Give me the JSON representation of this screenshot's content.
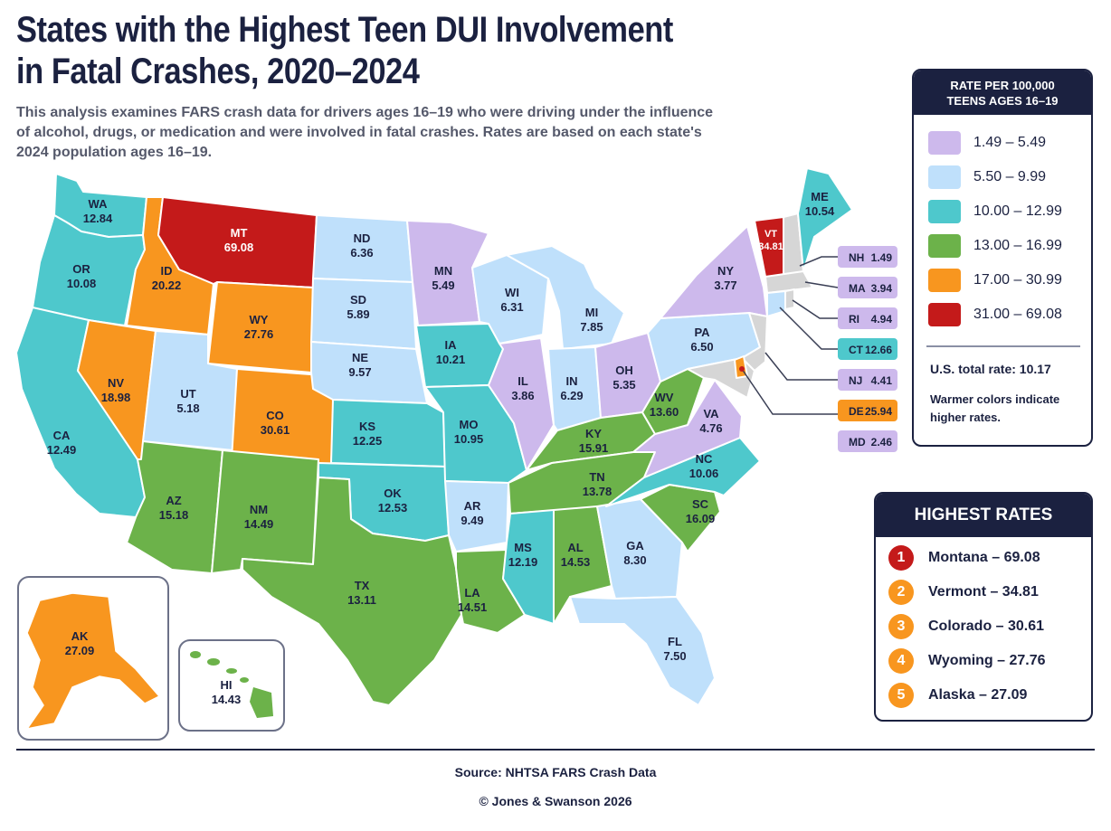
{
  "title_line1": "States with the Highest Teen DUI Involvement",
  "title_line2": "in Fatal Crashes, 2020–2024",
  "subtitle_line1": "This analysis examines FARS crash data for drivers ages 16–19 who were driving under the influence",
  "subtitle_line2": "of alcohol, drugs, or medication and were involved in fatal crashes. Rates are based on each state's",
  "subtitle_line3": "2024 population ages 16–19.",
  "legend": {
    "title_line1": "RATE PER 100,000",
    "title_line2": "TEENS AGES 16–19",
    "bins": [
      {
        "label": "1.49 – 5.49",
        "color": "#cdb9ec"
      },
      {
        "label": "5.50 – 9.99",
        "color": "#bfe0fb"
      },
      {
        "label": "10.00 – 12.99",
        "color": "#4ec8cc"
      },
      {
        "label": "13.00 – 16.99",
        "color": "#6cb24a"
      },
      {
        "label": "17.00 – 30.99",
        "color": "#f8961f"
      },
      {
        "label": "31.00 – 69.08",
        "color": "#c41a1a"
      }
    ],
    "total": "U.S. total rate: 10.17",
    "note": "Warmer colors indicate higher rates."
  },
  "highest": {
    "title": "HIGHEST RATES",
    "items": [
      {
        "rank": "1",
        "label": "Montana – 69.08",
        "color": "#c41a1a"
      },
      {
        "rank": "2",
        "label": "Vermont – 34.81",
        "color": "#f8961f"
      },
      {
        "rank": "3",
        "label": "Colorado – 30.61",
        "color": "#f8961f"
      },
      {
        "rank": "4",
        "label": "Wyoming – 27.76",
        "color": "#f8961f"
      },
      {
        "rank": "5",
        "label": "Alaska – 27.09",
        "color": "#f8961f"
      }
    ]
  },
  "states": {
    "WA": {
      "code": "WA",
      "value": "12.84"
    },
    "OR": {
      "code": "OR",
      "value": "10.08"
    },
    "CA": {
      "code": "CA",
      "value": "12.49"
    },
    "ID": {
      "code": "ID",
      "value": "20.22"
    },
    "NV": {
      "code": "NV",
      "value": "18.98"
    },
    "MT": {
      "code": "MT",
      "value": "69.08"
    },
    "WY": {
      "code": "WY",
      "value": "27.76"
    },
    "UT": {
      "code": "UT",
      "value": "5.18"
    },
    "AZ": {
      "code": "AZ",
      "value": "15.18"
    },
    "CO": {
      "code": "CO",
      "value": "30.61"
    },
    "NM": {
      "code": "NM",
      "value": "14.49"
    },
    "ND": {
      "code": "ND",
      "value": "6.36"
    },
    "SD": {
      "code": "SD",
      "value": "5.89"
    },
    "NE": {
      "code": "NE",
      "value": "9.57"
    },
    "KS": {
      "code": "KS",
      "value": "12.25"
    },
    "OK": {
      "code": "OK",
      "value": "12.53"
    },
    "TX": {
      "code": "TX",
      "value": "13.11"
    },
    "MN": {
      "code": "MN",
      "value": "5.49"
    },
    "IA": {
      "code": "IA",
      "value": "10.21"
    },
    "MO": {
      "code": "MO",
      "value": "10.95"
    },
    "AR": {
      "code": "AR",
      "value": "9.49"
    },
    "LA": {
      "code": "LA",
      "value": "14.51"
    },
    "WI": {
      "code": "WI",
      "value": "6.31"
    },
    "IL": {
      "code": "IL",
      "value": "3.86"
    },
    "MI": {
      "code": "MI",
      "value": "7.85"
    },
    "IN": {
      "code": "IN",
      "value": "6.29"
    },
    "OH": {
      "code": "OH",
      "value": "5.35"
    },
    "KY": {
      "code": "KY",
      "value": "15.91"
    },
    "TN": {
      "code": "TN",
      "value": "13.78"
    },
    "MS": {
      "code": "MS",
      "value": "12.19"
    },
    "AL": {
      "code": "AL",
      "value": "14.53"
    },
    "GA": {
      "code": "GA",
      "value": "8.30"
    },
    "FL": {
      "code": "FL",
      "value": "7.50"
    },
    "SC": {
      "code": "SC",
      "value": "16.09"
    },
    "NC": {
      "code": "NC",
      "value": "10.06"
    },
    "VA": {
      "code": "VA",
      "value": "4.76"
    },
    "WV": {
      "code": "WV",
      "value": "13.60"
    },
    "PA": {
      "code": "PA",
      "value": "6.50"
    },
    "NY": {
      "code": "NY",
      "value": "3.77"
    },
    "VT": {
      "code": "VT",
      "value": "34.81"
    },
    "ME": {
      "code": "ME",
      "value": "10.54"
    },
    "AK": {
      "code": "AK",
      "value": "27.09"
    },
    "HI": {
      "code": "HI",
      "value": "14.43"
    }
  },
  "small_states": [
    {
      "code": "NH",
      "value": "1.49",
      "color": "#cdb9ec"
    },
    {
      "code": "MA",
      "value": "3.94",
      "color": "#cdb9ec"
    },
    {
      "code": "RI",
      "value": "4.94",
      "color": "#cdb9ec"
    },
    {
      "code": "CT",
      "value": "12.66",
      "color": "#4ec8cc"
    },
    {
      "code": "NJ",
      "value": "4.41",
      "color": "#cdb9ec"
    },
    {
      "code": "DE",
      "value": "25.94",
      "color": "#f8961f"
    },
    {
      "code": "MD",
      "value": "2.46",
      "color": "#cdb9ec"
    }
  ],
  "source": "Source: NHTSA FARS Crash Data",
  "copyright": "© Jones & Swanson 2026"
}
